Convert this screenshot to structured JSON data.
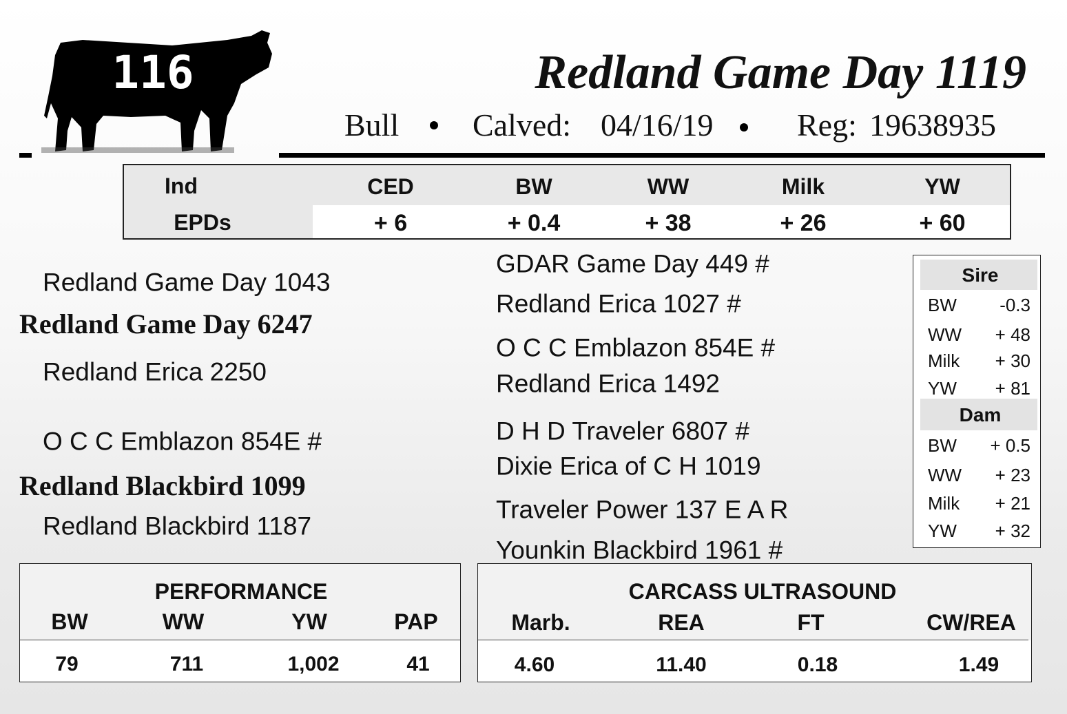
{
  "lot": "116",
  "header": {
    "title": "Redland Game Day 1119",
    "sex": "Bull",
    "calved_label": "Calved:",
    "calved": "04/16/19",
    "reg_label": "Reg:",
    "reg": "19638935"
  },
  "epds": {
    "label_1": "Ind",
    "label_2": "EPDs",
    "columns": [
      {
        "name": "CED",
        "value": "+ 6"
      },
      {
        "name": "BW",
        "value": "+ 0.4"
      },
      {
        "name": "WW",
        "value": "+ 38"
      },
      {
        "name": "Milk",
        "value": "+ 26"
      },
      {
        "name": "YW",
        "value": "+ 60"
      }
    ]
  },
  "pedigree": {
    "left": [
      "Redland Game Day 1043",
      "Redland Game Day 6247",
      "Redland Erica 2250",
      "O C C Emblazon 854E #",
      "Redland Blackbird 1099",
      "Redland Blackbird 1187"
    ],
    "right": [
      "GDAR Game Day 449 #",
      "Redland Erica 1027 #",
      "O C C Emblazon 854E #",
      "Redland Erica 1492",
      "D H D Traveler 6807 #",
      "Dixie Erica of C H 1019",
      "Traveler Power 137 E A R",
      "Younkin Blackbird 1961 #"
    ]
  },
  "parent_epds": {
    "sire": {
      "title": "Sire",
      "rows": [
        [
          "BW",
          "-0.3"
        ],
        [
          "WW",
          "+ 48"
        ],
        [
          "Milk",
          "+ 30"
        ],
        [
          "YW",
          "+ 81"
        ]
      ]
    },
    "dam": {
      "title": "Dam",
      "rows": [
        [
          "BW",
          "+ 0.5"
        ],
        [
          "WW",
          "+ 23"
        ],
        [
          "Milk",
          "+ 21"
        ],
        [
          "YW",
          "+ 32"
        ]
      ]
    }
  },
  "performance": {
    "title": "PERFORMANCE",
    "columns": [
      {
        "name": "BW",
        "value": "79"
      },
      {
        "name": "WW",
        "value": "711"
      },
      {
        "name": "YW",
        "value": "1,002"
      },
      {
        "name": "PAP",
        "value": "41"
      }
    ]
  },
  "carcass": {
    "title": "CARCASS ULTRASOUND",
    "columns": [
      {
        "name": "Marb.",
        "value": "4.60"
      },
      {
        "name": "REA",
        "value": "11.40"
      },
      {
        "name": "FT",
        "value": "0.18"
      },
      {
        "name": "CW/REA",
        "value": "1.49"
      }
    ]
  }
}
